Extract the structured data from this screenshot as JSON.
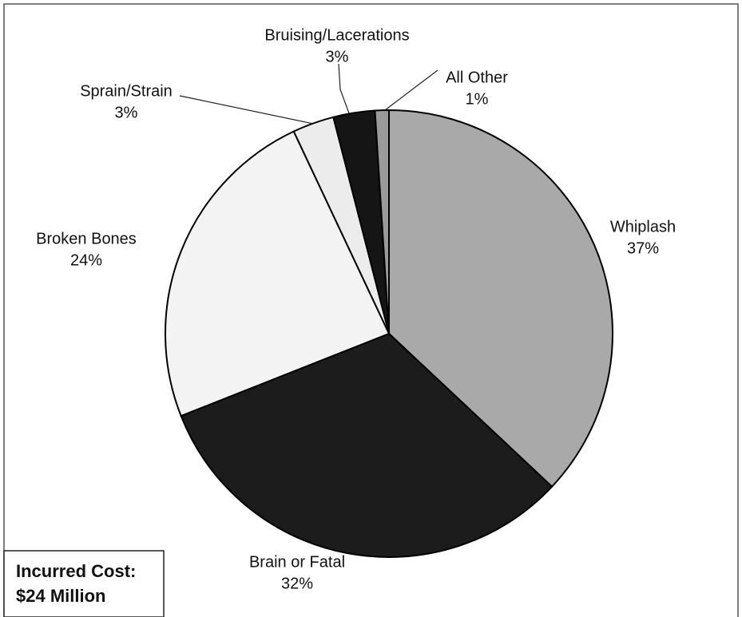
{
  "chart_data": {
    "type": "pie",
    "categories": [
      "Whiplash",
      "Brain or Fatal",
      "Broken Bones",
      "Sprain/Strain",
      "Bruising/Lacerations",
      "All Other"
    ],
    "values": [
      37,
      32,
      24,
      3,
      3,
      1
    ],
    "value_labels": [
      "37%",
      "32%",
      "24%",
      "3%",
      "3%",
      "1%"
    ],
    "colors": [
      "#a9a9a9",
      "#1c1c1c",
      "#f3f3f3",
      "#ececec",
      "#151515",
      "#9a9a9a"
    ],
    "annotation": [
      "Incurred Cost:",
      "$24 Million"
    ]
  }
}
